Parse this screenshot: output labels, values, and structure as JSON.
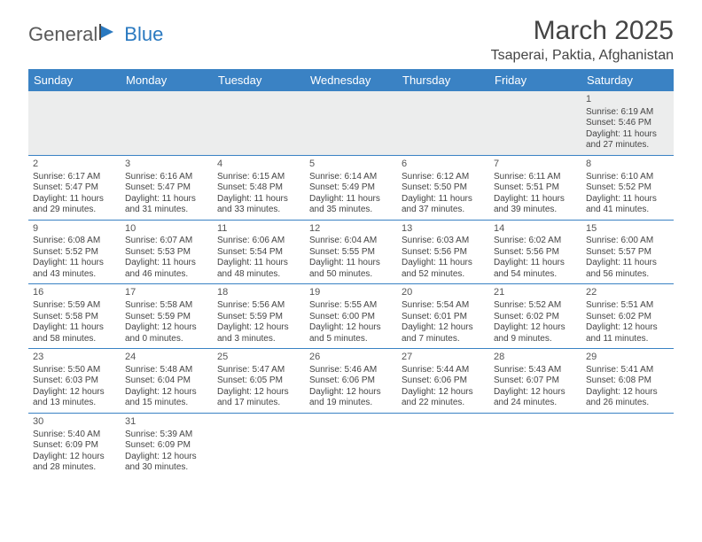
{
  "logo": {
    "part1": "General",
    "part2": "Blue"
  },
  "title": "March 2025",
  "location": "Tsaperai, Paktia, Afghanistan",
  "header_bg": "#3a82c4",
  "day_headers": [
    "Sunday",
    "Monday",
    "Tuesday",
    "Wednesday",
    "Thursday",
    "Friday",
    "Saturday"
  ],
  "weeks": [
    [
      null,
      null,
      null,
      null,
      null,
      null,
      {
        "n": "1",
        "sr": "Sunrise: 6:19 AM",
        "ss": "Sunset: 5:46 PM",
        "dl": "Daylight: 11 hours and 27 minutes."
      }
    ],
    [
      {
        "n": "2",
        "sr": "Sunrise: 6:17 AM",
        "ss": "Sunset: 5:47 PM",
        "dl": "Daylight: 11 hours and 29 minutes."
      },
      {
        "n": "3",
        "sr": "Sunrise: 6:16 AM",
        "ss": "Sunset: 5:47 PM",
        "dl": "Daylight: 11 hours and 31 minutes."
      },
      {
        "n": "4",
        "sr": "Sunrise: 6:15 AM",
        "ss": "Sunset: 5:48 PM",
        "dl": "Daylight: 11 hours and 33 minutes."
      },
      {
        "n": "5",
        "sr": "Sunrise: 6:14 AM",
        "ss": "Sunset: 5:49 PM",
        "dl": "Daylight: 11 hours and 35 minutes."
      },
      {
        "n": "6",
        "sr": "Sunrise: 6:12 AM",
        "ss": "Sunset: 5:50 PM",
        "dl": "Daylight: 11 hours and 37 minutes."
      },
      {
        "n": "7",
        "sr": "Sunrise: 6:11 AM",
        "ss": "Sunset: 5:51 PM",
        "dl": "Daylight: 11 hours and 39 minutes."
      },
      {
        "n": "8",
        "sr": "Sunrise: 6:10 AM",
        "ss": "Sunset: 5:52 PM",
        "dl": "Daylight: 11 hours and 41 minutes."
      }
    ],
    [
      {
        "n": "9",
        "sr": "Sunrise: 6:08 AM",
        "ss": "Sunset: 5:52 PM",
        "dl": "Daylight: 11 hours and 43 minutes."
      },
      {
        "n": "10",
        "sr": "Sunrise: 6:07 AM",
        "ss": "Sunset: 5:53 PM",
        "dl": "Daylight: 11 hours and 46 minutes."
      },
      {
        "n": "11",
        "sr": "Sunrise: 6:06 AM",
        "ss": "Sunset: 5:54 PM",
        "dl": "Daylight: 11 hours and 48 minutes."
      },
      {
        "n": "12",
        "sr": "Sunrise: 6:04 AM",
        "ss": "Sunset: 5:55 PM",
        "dl": "Daylight: 11 hours and 50 minutes."
      },
      {
        "n": "13",
        "sr": "Sunrise: 6:03 AM",
        "ss": "Sunset: 5:56 PM",
        "dl": "Daylight: 11 hours and 52 minutes."
      },
      {
        "n": "14",
        "sr": "Sunrise: 6:02 AM",
        "ss": "Sunset: 5:56 PM",
        "dl": "Daylight: 11 hours and 54 minutes."
      },
      {
        "n": "15",
        "sr": "Sunrise: 6:00 AM",
        "ss": "Sunset: 5:57 PM",
        "dl": "Daylight: 11 hours and 56 minutes."
      }
    ],
    [
      {
        "n": "16",
        "sr": "Sunrise: 5:59 AM",
        "ss": "Sunset: 5:58 PM",
        "dl": "Daylight: 11 hours and 58 minutes."
      },
      {
        "n": "17",
        "sr": "Sunrise: 5:58 AM",
        "ss": "Sunset: 5:59 PM",
        "dl": "Daylight: 12 hours and 0 minutes."
      },
      {
        "n": "18",
        "sr": "Sunrise: 5:56 AM",
        "ss": "Sunset: 5:59 PM",
        "dl": "Daylight: 12 hours and 3 minutes."
      },
      {
        "n": "19",
        "sr": "Sunrise: 5:55 AM",
        "ss": "Sunset: 6:00 PM",
        "dl": "Daylight: 12 hours and 5 minutes."
      },
      {
        "n": "20",
        "sr": "Sunrise: 5:54 AM",
        "ss": "Sunset: 6:01 PM",
        "dl": "Daylight: 12 hours and 7 minutes."
      },
      {
        "n": "21",
        "sr": "Sunrise: 5:52 AM",
        "ss": "Sunset: 6:02 PM",
        "dl": "Daylight: 12 hours and 9 minutes."
      },
      {
        "n": "22",
        "sr": "Sunrise: 5:51 AM",
        "ss": "Sunset: 6:02 PM",
        "dl": "Daylight: 12 hours and 11 minutes."
      }
    ],
    [
      {
        "n": "23",
        "sr": "Sunrise: 5:50 AM",
        "ss": "Sunset: 6:03 PM",
        "dl": "Daylight: 12 hours and 13 minutes."
      },
      {
        "n": "24",
        "sr": "Sunrise: 5:48 AM",
        "ss": "Sunset: 6:04 PM",
        "dl": "Daylight: 12 hours and 15 minutes."
      },
      {
        "n": "25",
        "sr": "Sunrise: 5:47 AM",
        "ss": "Sunset: 6:05 PM",
        "dl": "Daylight: 12 hours and 17 minutes."
      },
      {
        "n": "26",
        "sr": "Sunrise: 5:46 AM",
        "ss": "Sunset: 6:06 PM",
        "dl": "Daylight: 12 hours and 19 minutes."
      },
      {
        "n": "27",
        "sr": "Sunrise: 5:44 AM",
        "ss": "Sunset: 6:06 PM",
        "dl": "Daylight: 12 hours and 22 minutes."
      },
      {
        "n": "28",
        "sr": "Sunrise: 5:43 AM",
        "ss": "Sunset: 6:07 PM",
        "dl": "Daylight: 12 hours and 24 minutes."
      },
      {
        "n": "29",
        "sr": "Sunrise: 5:41 AM",
        "ss": "Sunset: 6:08 PM",
        "dl": "Daylight: 12 hours and 26 minutes."
      }
    ],
    [
      {
        "n": "30",
        "sr": "Sunrise: 5:40 AM",
        "ss": "Sunset: 6:09 PM",
        "dl": "Daylight: 12 hours and 28 minutes."
      },
      {
        "n": "31",
        "sr": "Sunrise: 5:39 AM",
        "ss": "Sunset: 6:09 PM",
        "dl": "Daylight: 12 hours and 30 minutes."
      },
      null,
      null,
      null,
      null,
      null
    ]
  ]
}
